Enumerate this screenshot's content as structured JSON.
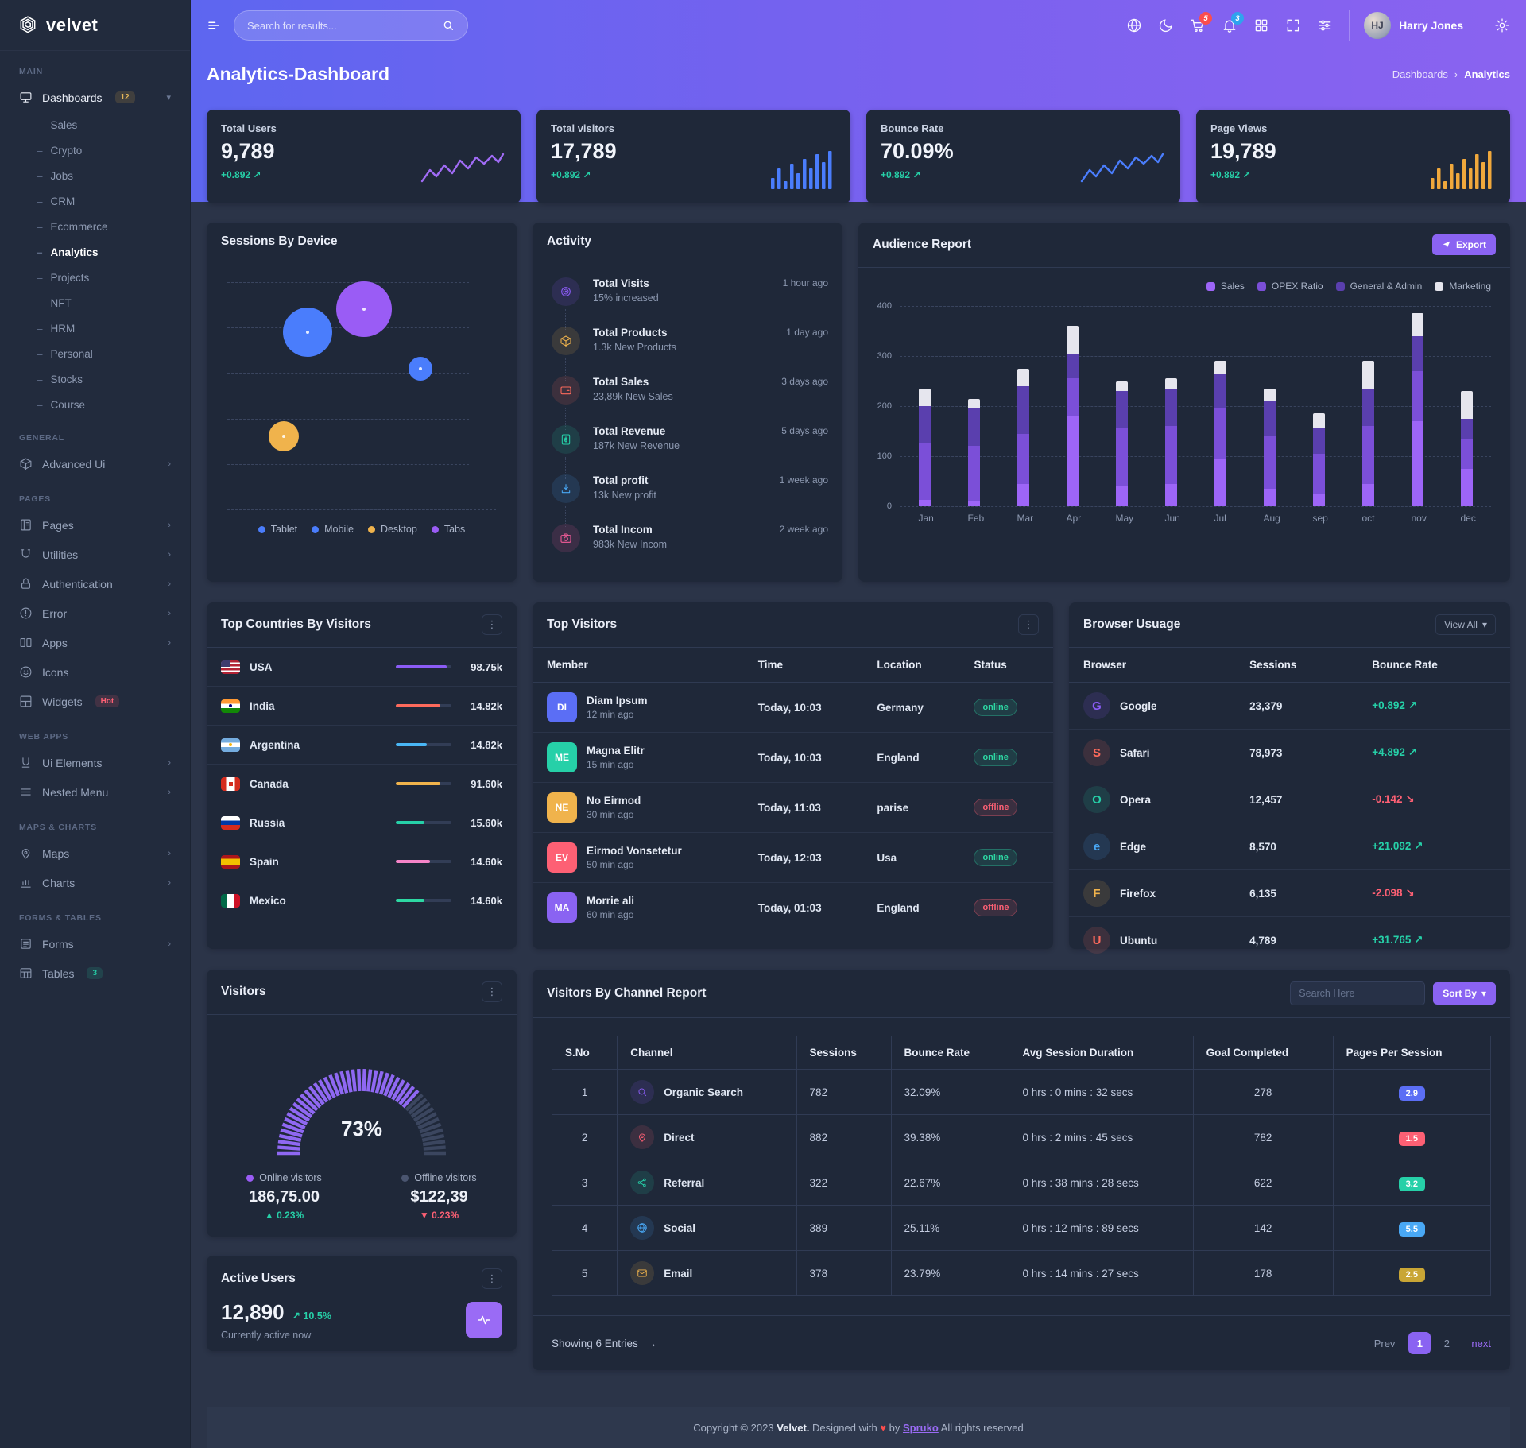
{
  "brand": "velvet",
  "header": {
    "search_placeholder": "Search for results...",
    "cart_badge": "5",
    "notif_badge": "3",
    "user": "Harry Jones"
  },
  "page_title": "Analytics-Dashboard",
  "breadcrumb": {
    "parent": "Dashboards",
    "current": "Analytics"
  },
  "sidebar": {
    "sections": [
      {
        "label": "MAIN",
        "items": [
          {
            "icon": "monitor",
            "label": "Dashboards",
            "badge": "12",
            "badge_color": "amber",
            "expanded": true,
            "active": true,
            "children": [
              {
                "label": "Sales"
              },
              {
                "label": "Crypto"
              },
              {
                "label": "Jobs"
              },
              {
                "label": "CRM"
              },
              {
                "label": "Ecommerce"
              },
              {
                "label": "Analytics",
                "active": true
              },
              {
                "label": "Projects"
              },
              {
                "label": "NFT"
              },
              {
                "label": "HRM"
              },
              {
                "label": "Personal"
              },
              {
                "label": "Stocks"
              },
              {
                "label": "Course"
              }
            ]
          }
        ]
      },
      {
        "label": "GENERAL",
        "items": [
          {
            "icon": "cube",
            "label": "Advanced Ui",
            "chevron": true
          }
        ]
      },
      {
        "label": "PAGES",
        "items": [
          {
            "icon": "pages",
            "label": "Pages",
            "chevron": true
          },
          {
            "icon": "utilities",
            "label": "Utilities",
            "chevron": true
          },
          {
            "icon": "lock",
            "label": "Authentication",
            "chevron": true
          },
          {
            "icon": "error",
            "label": "Error",
            "chevron": true
          },
          {
            "icon": "apps",
            "label": "Apps",
            "chevron": true
          },
          {
            "icon": "smiley",
            "label": "Icons"
          },
          {
            "icon": "widgets",
            "label": "Widgets",
            "badge": "Hot",
            "badge_color": "red"
          }
        ]
      },
      {
        "label": "WEB APPS",
        "items": [
          {
            "icon": "ui",
            "label": "Ui Elements",
            "chevron": true
          },
          {
            "icon": "menu",
            "label": "Nested Menu",
            "chevron": true
          }
        ]
      },
      {
        "label": "MAPS & CHARTS",
        "items": [
          {
            "icon": "maps",
            "label": "Maps",
            "chevron": true
          },
          {
            "icon": "charts",
            "label": "Charts",
            "chevron": true
          }
        ]
      },
      {
        "label": "FORMS & TABLES",
        "items": [
          {
            "icon": "forms",
            "label": "Forms",
            "chevron": true
          },
          {
            "icon": "tables",
            "label": "Tables",
            "badge": "3",
            "badge_color": "teal"
          }
        ]
      }
    ]
  },
  "stat_cards": [
    {
      "label": "Total Users",
      "value": "9,789",
      "delta": "+0.892",
      "spark_type": "line",
      "spark_color": "#a06bf5"
    },
    {
      "label": "Total visitors",
      "value": "17,789",
      "delta": "+0.892",
      "spark_type": "bars",
      "spark_color": "#4a7dfc"
    },
    {
      "label": "Bounce Rate",
      "value": "70.09%",
      "delta": "+0.892",
      "spark_type": "line",
      "spark_color": "#4a7dfc"
    },
    {
      "label": "Page Views",
      "value": "19,789",
      "delta": "+0.892",
      "spark_type": "bars",
      "spark_color": "#f0a83c"
    }
  ],
  "sessions_by_device": {
    "title": "Sessions By Device",
    "legend": [
      {
        "label": "Tablet",
        "color": "#4a7dfc"
      },
      {
        "label": "Mobile",
        "color": "#4a7dfc"
      },
      {
        "label": "Desktop",
        "color": "#f0b34c"
      },
      {
        "label": "Tabs",
        "color": "#9a5cf5"
      }
    ],
    "bubbles": [
      {
        "name": "tablet",
        "color": "#4a7dfc",
        "x": 30,
        "y": 22,
        "size": 62
      },
      {
        "name": "tabs",
        "color": "#9a5cf5",
        "x": 51,
        "y": 12,
        "size": 70
      },
      {
        "name": "mobile",
        "color": "#4a7dfc",
        "x": 72,
        "y": 38,
        "size": 30
      },
      {
        "name": "desktop",
        "color": "#f0b34c",
        "x": 21,
        "y": 68,
        "size": 38
      }
    ]
  },
  "activity": {
    "title": "Activity",
    "items": [
      {
        "icon": "target",
        "color": "#8b5cf6",
        "title": "Total Visits",
        "sub": "15% increased",
        "time": "1 hour ago"
      },
      {
        "icon": "cube",
        "color": "#f0b34c",
        "title": "Total Products",
        "sub": "1.3k New Products",
        "time": "1 day ago"
      },
      {
        "icon": "wallet",
        "color": "#fd6a5c",
        "title": "Total Sales",
        "sub": "23,89k New Sales",
        "time": "3 days ago"
      },
      {
        "icon": "dollar",
        "color": "#26d0a8",
        "title": "Total Revenue",
        "sub": "187k New Revenue",
        "time": "5 days ago"
      },
      {
        "icon": "download",
        "color": "#49a8f5",
        "title": "Total profit",
        "sub": "13k New profit",
        "time": "1 week ago"
      },
      {
        "icon": "camera",
        "color": "#f55c9a",
        "title": "Total Incom",
        "sub": "983k New Incom",
        "time": "2 week ago"
      }
    ]
  },
  "audience_report": {
    "title": "Audience Report",
    "export_label": "Export",
    "chart_data": {
      "type": "bar",
      "stacked": true,
      "categories": [
        "Jan",
        "Feb",
        "Mar",
        "Apr",
        "May",
        "Jun",
        "Jul",
        "Aug",
        "sep",
        "oct",
        "nov",
        "dec"
      ],
      "series": [
        {
          "name": "Sales",
          "color": "#9d65f7",
          "values": [
            12,
            10,
            45,
            180,
            40,
            45,
            95,
            35,
            25,
            45,
            170,
            75
          ]
        },
        {
          "name": "OPEX Ratio",
          "color": "#7b4fd8",
          "values": [
            115,
            110,
            100,
            75,
            115,
            115,
            100,
            105,
            80,
            115,
            100,
            60
          ]
        },
        {
          "name": "General & Admin",
          "color": "#5a3fae",
          "values": [
            73,
            75,
            95,
            50,
            75,
            75,
            70,
            70,
            50,
            75,
            70,
            40
          ]
        },
        {
          "name": "Marketing",
          "color": "#e6e6ee",
          "values": [
            35,
            20,
            35,
            55,
            20,
            20,
            25,
            25,
            30,
            55,
            45,
            55
          ]
        }
      ],
      "ylim": [
        0,
        400
      ],
      "yticks": [
        0,
        100,
        200,
        300,
        400
      ],
      "legend_position": "top-right",
      "grid": "dashed-horizontal"
    }
  },
  "top_countries": {
    "title": "Top Countries By Visitors",
    "rows": [
      {
        "country": "USA",
        "value": "98.75k",
        "bar_color": "#8b5cf6",
        "bar_pct": 92
      },
      {
        "country": "India",
        "value": "14.82k",
        "bar_color": "#fd6a5c",
        "bar_pct": 80
      },
      {
        "country": "Argentina",
        "value": "14.82k",
        "bar_color": "#49b6f5",
        "bar_pct": 55
      },
      {
        "country": "Canada",
        "value": "91.60k",
        "bar_color": "#f0b34c",
        "bar_pct": 80
      },
      {
        "country": "Russia",
        "value": "15.60k",
        "bar_color": "#26d0a8",
        "bar_pct": 52
      },
      {
        "country": "Spain",
        "value": "14.60k",
        "bar_color": "#f584c8",
        "bar_pct": 62
      },
      {
        "country": "Mexico",
        "value": "14.60k",
        "bar_color": "#2dd8a3",
        "bar_pct": 52
      }
    ]
  },
  "top_visitors": {
    "title": "Top Visitors",
    "columns": [
      "Member",
      "Time",
      "Location",
      "Status"
    ],
    "rows": [
      {
        "name": "Diam Ipsum",
        "ago": "12 min ago",
        "time": "Today, 10:03",
        "location": "Germany",
        "status": "online"
      },
      {
        "name": "Magna Elitr",
        "ago": "15 min ago",
        "time": "Today, 10:03",
        "location": "England",
        "status": "online"
      },
      {
        "name": "No Eirmod",
        "ago": "30 min ago",
        "time": "Today, 11:03",
        "location": "parise",
        "status": "offline"
      },
      {
        "name": "Eirmod Vonsetetur",
        "ago": "50 min ago",
        "time": "Today, 12:03",
        "location": "Usa",
        "status": "online"
      },
      {
        "name": "Morrie ali",
        "ago": "60 min ago",
        "time": "Today, 01:03",
        "location": "England",
        "status": "offline"
      }
    ]
  },
  "browser_usage": {
    "title": "Browser Usuage",
    "view_all": "View All",
    "columns": [
      "Browser",
      "Sessions",
      "Bounce Rate"
    ],
    "rows": [
      {
        "browser": "Google",
        "letter": "G",
        "icon_color": "#8b5cf6",
        "sessions": "23,379",
        "delta": "+0.892",
        "dir": "up"
      },
      {
        "browser": "Safari",
        "letter": "S",
        "icon_color": "#fd6a5c",
        "sessions": "78,973",
        "delta": "+4.892",
        "dir": "up"
      },
      {
        "browser": "Opera",
        "letter": "O",
        "icon_color": "#26d0a8",
        "sessions": "12,457",
        "delta": "-0.142",
        "dir": "down"
      },
      {
        "browser": "Edge",
        "letter": "e",
        "icon_color": "#49a8f5",
        "sessions": "8,570",
        "delta": "+21.092",
        "dir": "up"
      },
      {
        "browser": "Firefox",
        "letter": "F",
        "icon_color": "#f0b34c",
        "sessions": "6,135",
        "delta": "-2.098",
        "dir": "down"
      },
      {
        "browser": "Ubuntu",
        "letter": "U",
        "icon_color": "#fd6a5c",
        "sessions": "4,789",
        "delta": "+31.765",
        "dir": "up"
      }
    ]
  },
  "visitors_gauge": {
    "title": "Visitors",
    "percent": 73,
    "percent_label": "73%",
    "online": {
      "label": "Online visitors",
      "value": "186,75.00",
      "delta": "0.23%",
      "dir": "up",
      "dot_color": "#9a5cf5"
    },
    "offline": {
      "label": "Offline visitors",
      "value": "$122,39",
      "delta": "0.23%",
      "dir": "down",
      "dot_color": "#4a5570"
    }
  },
  "channel_report": {
    "title": "Visitors By Channel Report",
    "search_placeholder": "Search Here",
    "sort_label": "Sort By",
    "columns": [
      "S.No",
      "Channel",
      "Sessions",
      "Bounce Rate",
      "Avg Session Duration",
      "Goal Completed",
      "Pages Per Session"
    ],
    "rows": [
      {
        "sno": "1",
        "channel": "Organic Search",
        "icon": "search",
        "icon_color": "#8b5cf6",
        "sessions": "782",
        "bounce": "32.09%",
        "duration": "0 hrs : 0 mins : 32 secs",
        "goal": "278",
        "pps": "2.9",
        "pps_color": "#5b6ef5"
      },
      {
        "sno": "2",
        "channel": "Direct",
        "icon": "pin",
        "icon_color": "#fd6074",
        "sessions": "882",
        "bounce": "39.38%",
        "duration": "0 hrs : 2 mins : 45 secs",
        "goal": "782",
        "pps": "1.5",
        "pps_color": "#fd6074"
      },
      {
        "sno": "3",
        "channel": "Referral",
        "icon": "share",
        "icon_color": "#26d0a8",
        "sessions": "322",
        "bounce": "22.67%",
        "duration": "0 hrs : 38 mins : 28 secs",
        "goal": "622",
        "pps": "3.2",
        "pps_color": "#26d0a8"
      },
      {
        "sno": "4",
        "channel": "Social",
        "icon": "globe",
        "icon_color": "#49a8f5",
        "sessions": "389",
        "bounce": "25.11%",
        "duration": "0 hrs : 12 mins : 89 secs",
        "goal": "142",
        "pps": "5.5",
        "pps_color": "#49a8f5"
      },
      {
        "sno": "5",
        "channel": "Email",
        "icon": "mail",
        "icon_color": "#f0b34c",
        "sessions": "378",
        "bounce": "23.79%",
        "duration": "0 hrs : 14 mins : 27 secs",
        "goal": "178",
        "pps": "2.5",
        "pps_color": "#c9a635"
      }
    ],
    "showing": "Showing 6 Entries",
    "pagination": {
      "prev": "Prev",
      "pages": [
        "1",
        "2"
      ],
      "active": "1",
      "next": "next"
    }
  },
  "active_users": {
    "title": "Active Users",
    "value": "12,890",
    "delta": "10.5%",
    "sub": "Currently active now"
  },
  "footer": {
    "prefix": "Copyright © 2023",
    "brand": "Velvet.",
    "middle": "Designed with",
    "by": "by",
    "designer": "Spruko",
    "suffix": "All rights reserved"
  }
}
